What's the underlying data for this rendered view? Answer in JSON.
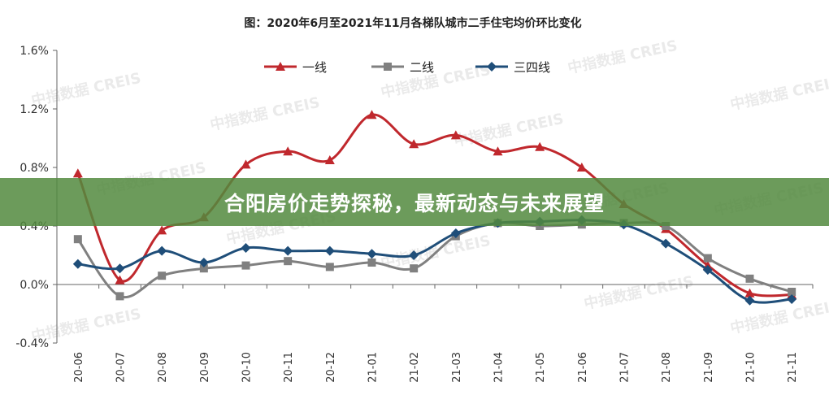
{
  "chart_data": {
    "type": "line",
    "title": "图：2020年6月至2021年11月各梯队城市二手住宅均价环比变化",
    "categories": [
      "20-06",
      "20-07",
      "20-08",
      "20-09",
      "20-10",
      "20-11",
      "20-12",
      "21-01",
      "21-02",
      "21-03",
      "21-04",
      "21-05",
      "21-06",
      "21-07",
      "21-08",
      "21-09",
      "21-10",
      "21-11"
    ],
    "ylim": [
      -0.4,
      1.6
    ],
    "yticks": [
      "-0.4%",
      "0.0%",
      "0.4%",
      "0.8%",
      "1.2%",
      "1.6%"
    ],
    "ytick_values": [
      -0.4,
      0.0,
      0.4,
      0.8,
      1.2,
      1.6
    ],
    "legend_position": "top-center",
    "series": [
      {
        "name": "一线",
        "color": "#c0282d",
        "marker": "triangle",
        "values": [
          0.76,
          0.03,
          0.37,
          0.46,
          0.82,
          0.91,
          0.85,
          1.16,
          0.96,
          1.02,
          0.91,
          0.94,
          0.8,
          0.55,
          0.38,
          0.13,
          -0.06,
          -0.07
        ]
      },
      {
        "name": "二线",
        "color": "#808080",
        "marker": "square",
        "values": [
          0.31,
          -0.08,
          0.06,
          0.11,
          0.13,
          0.16,
          0.12,
          0.15,
          0.11,
          0.33,
          0.42,
          0.4,
          0.41,
          0.42,
          0.4,
          0.18,
          0.04,
          -0.05
        ]
      },
      {
        "name": "三四线",
        "color": "#1f4e79",
        "marker": "diamond",
        "values": [
          0.14,
          0.11,
          0.23,
          0.15,
          0.25,
          0.23,
          0.23,
          0.21,
          0.2,
          0.35,
          0.42,
          0.43,
          0.44,
          0.41,
          0.28,
          0.1,
          -0.11,
          -0.1
        ]
      }
    ]
  },
  "watermark": {
    "text": "中指数据 CREIS"
  },
  "overlay": {
    "headline": "合阳房价走势探秘，最新动态与未来展望"
  }
}
